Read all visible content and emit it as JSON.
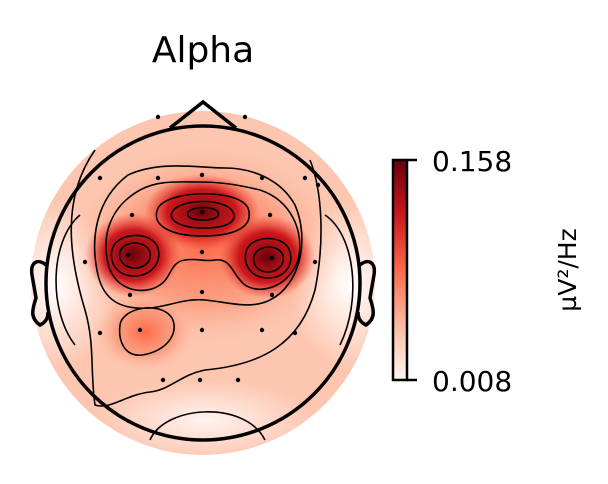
{
  "chart_data": {
    "type": "heatmap",
    "title": "Alpha",
    "colorbar": {
      "label": "µV²/Hz",
      "min": 0.008,
      "max": 0.158,
      "tick_labels": [
        "0.158",
        "0.008"
      ],
      "colormap": "Reds",
      "colors": [
        "#fff5f0",
        "#fcbba1",
        "#fb6a4a",
        "#cb181d",
        "#67000d"
      ]
    },
    "grid": false,
    "peaks": [
      {
        "region": "frontal-central",
        "value": 0.15
      },
      {
        "region": "left-central",
        "value": 0.158
      },
      {
        "region": "right-central",
        "value": 0.155
      },
      {
        "region": "left-parietal",
        "value": 0.09
      }
    ]
  }
}
